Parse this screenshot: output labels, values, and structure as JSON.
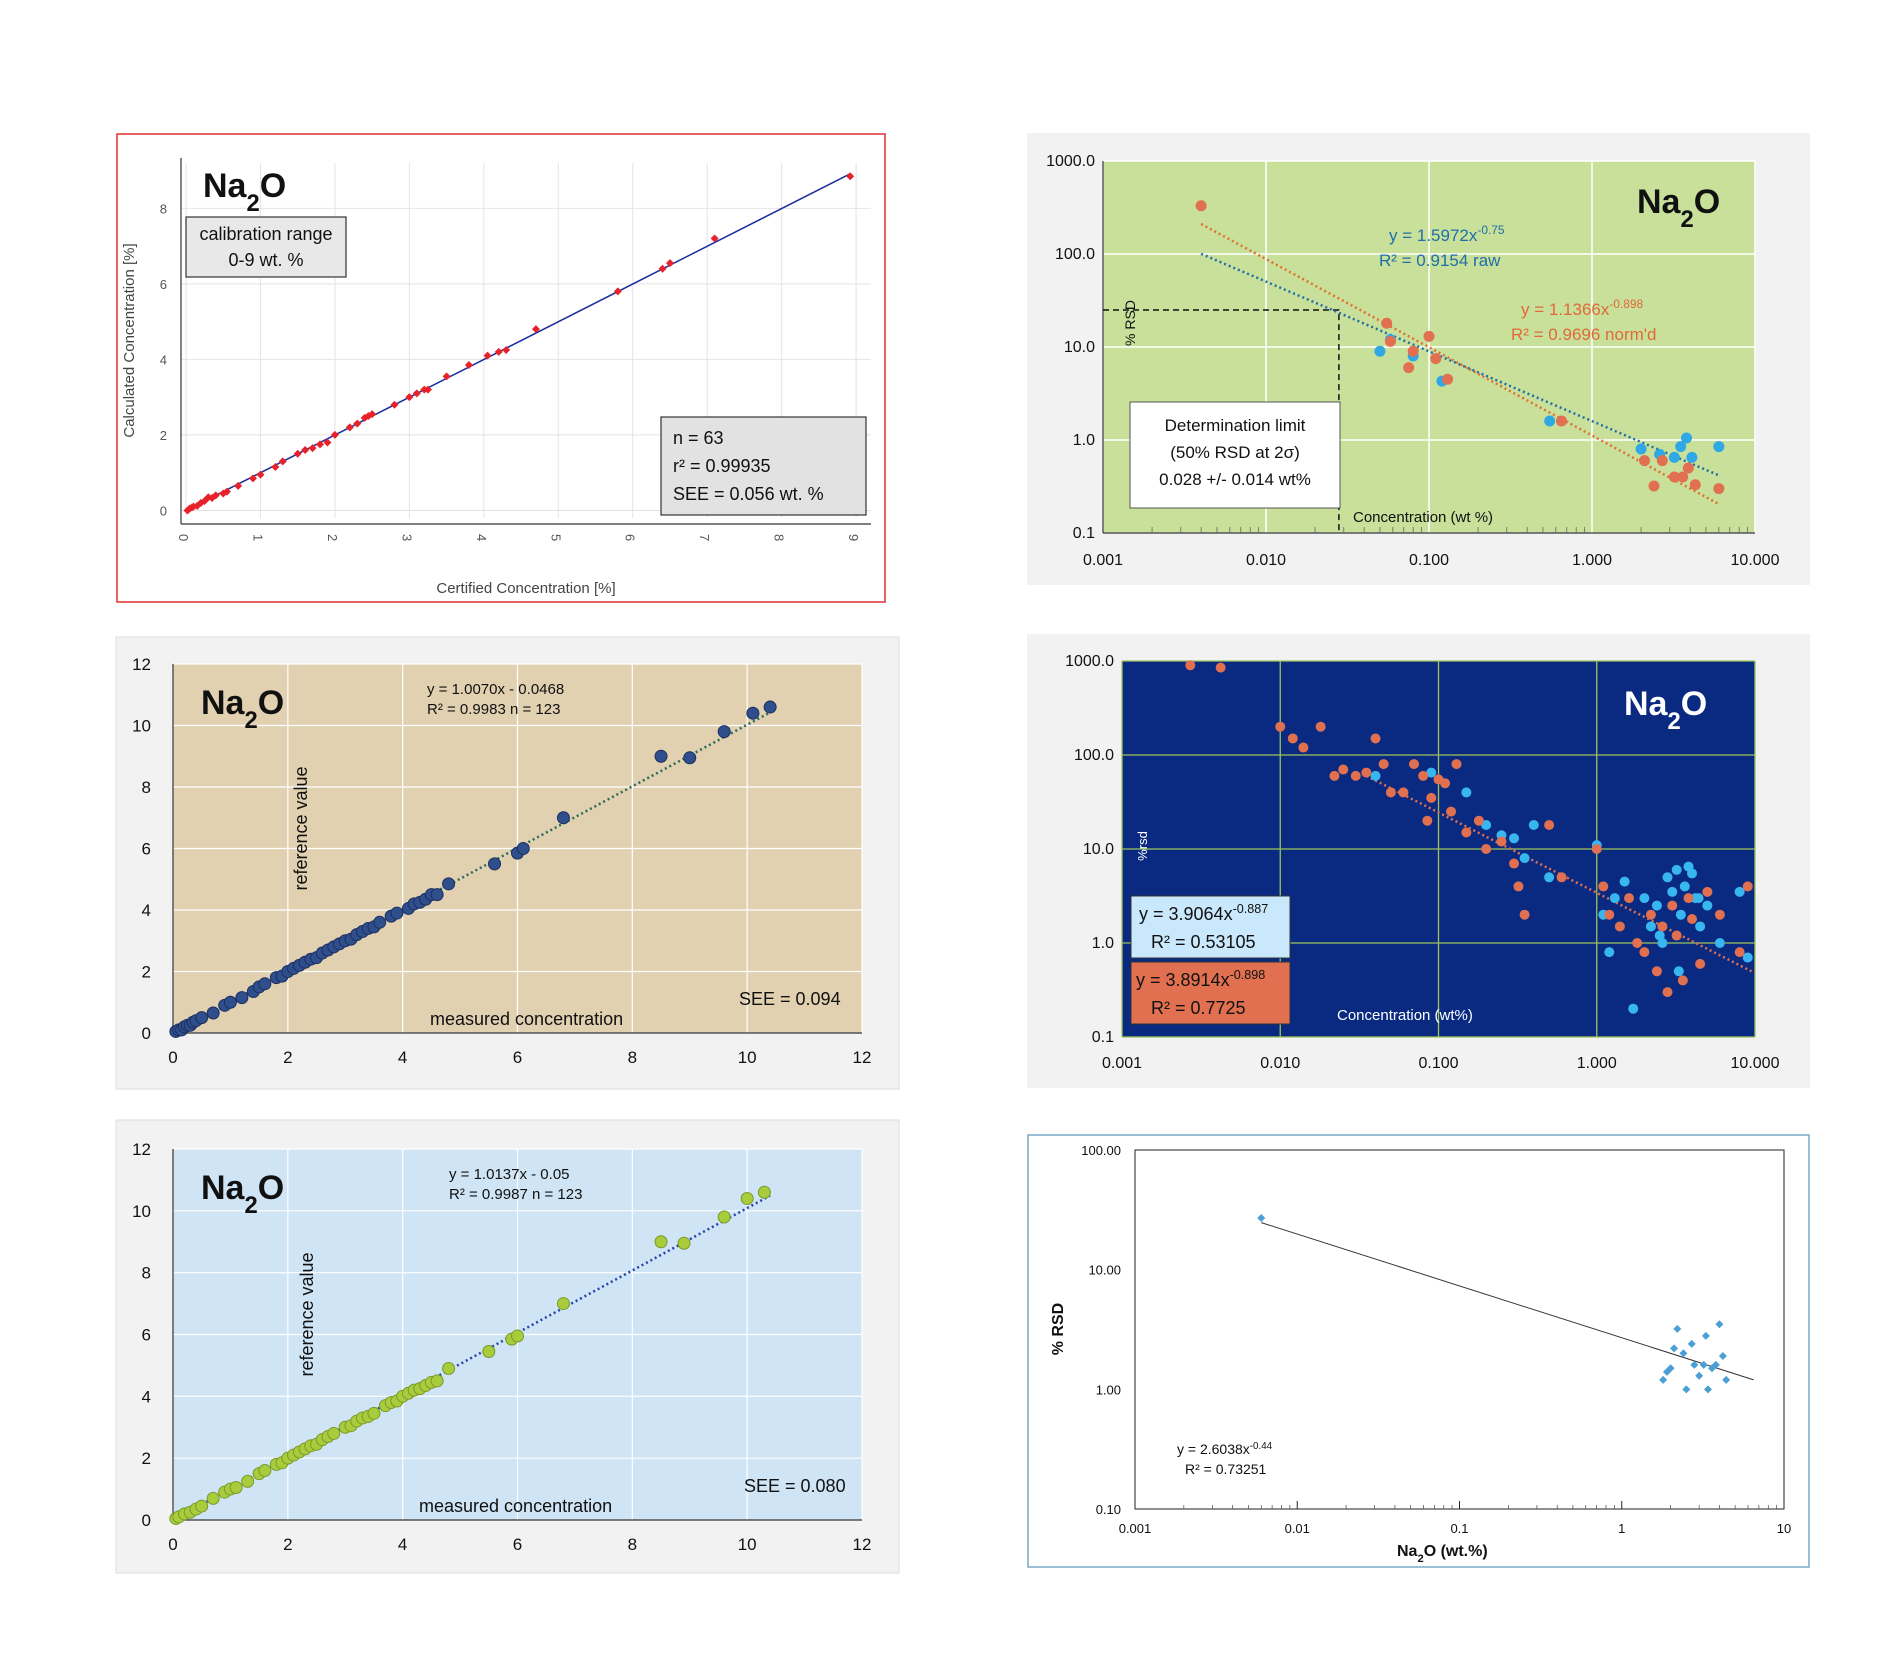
{
  "chart_data": [
    {
      "id": "p1",
      "type": "scatter",
      "title": "Na2O",
      "xlabel": "Certified Concentration [%]",
      "ylabel": "Calculated Concentration [%]",
      "xlim": [
        0,
        9.2
      ],
      "ylim": [
        -0.2,
        9.2
      ],
      "xticks": [
        0,
        1,
        2,
        3,
        4,
        5,
        6,
        7,
        8,
        9
      ],
      "yticks": [
        0,
        2,
        4,
        6,
        8
      ],
      "grid": true,
      "annotation_box": [
        "calibration range",
        "0-9 wt. %"
      ],
      "stats_box": [
        "n = 63",
        "r² = 0.99935",
        "SEE = 0.056 wt. %"
      ],
      "fit_line": {
        "slope": 0.9993,
        "intercept": 0.0
      },
      "series": [
        {
          "name": "",
          "color": "#e8222a",
          "x": [
            0.02,
            0.05,
            0.08,
            0.1,
            0.15,
            0.2,
            0.25,
            0.3,
            0.35,
            0.4,
            0.5,
            0.55,
            0.7,
            0.9,
            1.0,
            1.2,
            1.3,
            1.5,
            1.6,
            1.7,
            1.8,
            1.9,
            2.0,
            2.2,
            2.3,
            2.4,
            2.45,
            2.5,
            2.8,
            3.0,
            3.1,
            3.2,
            3.25,
            3.5,
            3.8,
            4.05,
            4.2,
            4.3,
            4.7,
            5.8,
            6.4,
            6.5,
            7.1,
            8.92
          ],
          "y": [
            0.0,
            0.05,
            0.08,
            0.1,
            0.12,
            0.2,
            0.25,
            0.35,
            0.33,
            0.4,
            0.45,
            0.5,
            0.65,
            0.85,
            0.95,
            1.15,
            1.3,
            1.5,
            1.6,
            1.65,
            1.75,
            1.8,
            2.0,
            2.2,
            2.3,
            2.45,
            2.5,
            2.55,
            2.8,
            3.0,
            3.1,
            3.2,
            3.2,
            3.55,
            3.85,
            4.1,
            4.2,
            4.25,
            4.8,
            5.8,
            6.4,
            6.55,
            7.2,
            8.85
          ]
        }
      ]
    },
    {
      "id": "p2",
      "type": "scatter",
      "title": "Na2O",
      "xscale": "log",
      "yscale": "log",
      "xlabel": "Concentration (wt %)",
      "ylabel": "% RSD",
      "xlim": [
        0.001,
        10
      ],
      "ylim": [
        0.1,
        1000
      ],
      "xtick_labels": [
        "0.001",
        "0.010",
        "0.100",
        "1.000",
        "10.000"
      ],
      "ytick_labels": [
        "0.1",
        "1.0",
        "10.0",
        "100.0",
        "1000.0"
      ],
      "grid": true,
      "annotation_box": [
        "Determination limit",
        "(50% RSD at 2σ)",
        "0.028 +/- 0.014 wt%"
      ],
      "determination_limit": {
        "x": 0.028,
        "y": 25
      },
      "series": [
        {
          "name": "raw",
          "color": "#31a8e6",
          "equation": "y = 1.5972x",
          "exponent": "-0.75",
          "r2": "R² = 0.9154  raw",
          "fit": {
            "a": 1.5972,
            "b": -0.75
          },
          "x": [
            0.05,
            0.058,
            0.08,
            0.12,
            0.55,
            2.0,
            2.6,
            3.2,
            3.5,
            3.8,
            4.1,
            6.0
          ],
          "y": [
            9.0,
            12.0,
            8.0,
            4.3,
            1.6,
            0.8,
            0.7,
            0.65,
            0.85,
            1.05,
            0.65,
            0.85
          ]
        },
        {
          "name": "norm'd",
          "color": "#e07050",
          "equation": "y = 1.1366x",
          "exponent": "-0.898",
          "r2": "R² = 0.9696  norm'd",
          "fit": {
            "a": 1.1366,
            "b": -0.898
          },
          "x": [
            0.004,
            0.055,
            0.058,
            0.075,
            0.08,
            0.1,
            0.11,
            0.13,
            0.65,
            2.1,
            2.4,
            2.7,
            3.2,
            3.6,
            3.9,
            4.3,
            6.0
          ],
          "y": [
            330,
            18.0,
            11.5,
            6.0,
            9.0,
            13.0,
            7.5,
            4.5,
            1.6,
            0.6,
            0.32,
            0.6,
            0.4,
            0.4,
            0.5,
            0.33,
            0.3
          ]
        }
      ]
    },
    {
      "id": "p3",
      "type": "scatter",
      "title": "Na2O",
      "xlabel": "measured concentration",
      "ylabel": "reference value",
      "xlim": [
        0,
        12
      ],
      "ylim": [
        0,
        12
      ],
      "xticks": [
        0,
        2,
        4,
        6,
        8,
        10,
        12
      ],
      "yticks": [
        0,
        2,
        4,
        6,
        8,
        10,
        12
      ],
      "grid": true,
      "equation": "y = 1.0070x - 0.0468",
      "stats": "R² = 0.9983  n = 123",
      "see": "SEE = 0.094",
      "fit_line": {
        "slope": 1.007,
        "intercept": -0.0468
      },
      "series": [
        {
          "name": "",
          "color": "#2f4f8c",
          "x": [
            0.05,
            0.1,
            0.15,
            0.2,
            0.25,
            0.3,
            0.35,
            0.4,
            0.5,
            0.7,
            0.9,
            1.0,
            1.2,
            1.4,
            1.5,
            1.6,
            1.8,
            1.9,
            2.0,
            2.1,
            2.2,
            2.3,
            2.4,
            2.5,
            2.6,
            2.7,
            2.8,
            2.9,
            3.0,
            3.1,
            3.2,
            3.3,
            3.4,
            3.5,
            3.6,
            3.8,
            3.9,
            4.1,
            4.2,
            4.3,
            4.4,
            4.5,
            4.6,
            4.8,
            5.6,
            6.0,
            6.1,
            6.8,
            8.5,
            9.0,
            9.6,
            10.1,
            10.4
          ],
          "y": [
            0.05,
            0.1,
            0.1,
            0.2,
            0.25,
            0.25,
            0.35,
            0.4,
            0.5,
            0.65,
            0.9,
            1.0,
            1.15,
            1.35,
            1.5,
            1.6,
            1.8,
            1.85,
            2.0,
            2.1,
            2.2,
            2.3,
            2.4,
            2.45,
            2.6,
            2.7,
            2.8,
            2.9,
            3.0,
            3.05,
            3.2,
            3.3,
            3.4,
            3.45,
            3.6,
            3.8,
            3.9,
            4.05,
            4.2,
            4.25,
            4.35,
            4.5,
            4.5,
            4.85,
            5.5,
            5.85,
            6.0,
            7.0,
            9.0,
            8.95,
            9.8,
            10.4,
            10.6
          ]
        }
      ]
    },
    {
      "id": "p4",
      "type": "scatter",
      "title": "Na2O",
      "xscale": "log",
      "yscale": "log",
      "xlabel": "Concentration (wt%)",
      "ylabel": "%rsd",
      "xlim": [
        0.001,
        10
      ],
      "ylim": [
        0.1,
        1000
      ],
      "xtick_labels": [
        "0.001",
        "0.010",
        "0.100",
        "1.000",
        "10.000"
      ],
      "ytick_labels": [
        "0.1",
        "1.0",
        "10.0",
        "100.0",
        "1000.0"
      ],
      "grid": true,
      "series": [
        {
          "name": "blue",
          "color": "#38b6f0",
          "equation": "y = 3.9064x",
          "exponent": "-0.887",
          "r2": "R² = 0.53105",
          "fit": {
            "a": 3.9064,
            "b": -0.887
          },
          "x": [
            0.04,
            0.09,
            0.15,
            0.2,
            0.25,
            0.3,
            0.35,
            0.4,
            0.5,
            1.0,
            1.1,
            1.3,
            1.5,
            1.7,
            2.0,
            2.2,
            2.4,
            2.6,
            2.8,
            3.0,
            3.2,
            3.4,
            3.6,
            3.8,
            4.0,
            4.2,
            4.5,
            5.0,
            6.0,
            8.0,
            9.0,
            1.2,
            2.5,
            3.3,
            4.4
          ],
          "y": [
            60.0,
            65.0,
            40.0,
            18.0,
            14.0,
            13.0,
            8.0,
            18.0,
            5.0,
            11.0,
            2.0,
            3.0,
            4.5,
            0.2,
            3.0,
            1.5,
            2.5,
            1.0,
            5.0,
            3.5,
            6.0,
            2.0,
            4.0,
            6.5,
            5.5,
            3.0,
            1.5,
            2.5,
            1.0,
            3.5,
            0.7,
            0.8,
            1.2,
            0.5,
            3.0
          ]
        },
        {
          "name": "orange",
          "color": "#e07050",
          "equation": "y = 3.8914x",
          "exponent": "-0.898",
          "r2": "R² = 0.7725",
          "fit": {
            "a": 3.8914,
            "b": -0.898
          },
          "x": [
            0.0027,
            0.0042,
            0.01,
            0.012,
            0.014,
            0.018,
            0.022,
            0.025,
            0.03,
            0.035,
            0.04,
            0.045,
            0.05,
            0.06,
            0.07,
            0.08,
            0.085,
            0.09,
            0.1,
            0.11,
            0.12,
            0.13,
            0.15,
            0.18,
            0.2,
            0.25,
            0.3,
            0.32,
            0.35,
            0.5,
            0.6,
            1.0,
            1.1,
            1.2,
            1.4,
            1.6,
            1.8,
            2.0,
            2.2,
            2.4,
            2.6,
            2.8,
            3.0,
            3.2,
            3.5,
            3.8,
            4.0,
            4.5,
            5.0,
            6.0,
            8.0,
            9.0
          ],
          "y": [
            900,
            850,
            200,
            150,
            120,
            200,
            60,
            70,
            60,
            65,
            150,
            80,
            40,
            40,
            80,
            60,
            20,
            35,
            55,
            50,
            25,
            80,
            15,
            20,
            10,
            12,
            7,
            4,
            2,
            18,
            5,
            10,
            4,
            2,
            1.5,
            3,
            1,
            0.8,
            2,
            0.5,
            1.5,
            0.3,
            2.5,
            1.2,
            0.4,
            3,
            1.8,
            0.6,
            3.5,
            2,
            0.8,
            4
          ]
        }
      ]
    },
    {
      "id": "p5",
      "type": "scatter",
      "title": "Na2O",
      "xlabel": "measured concentration",
      "ylabel": "reference value",
      "xlim": [
        0,
        12
      ],
      "ylim": [
        0,
        12
      ],
      "xticks": [
        0,
        2,
        4,
        6,
        8,
        10,
        12
      ],
      "yticks": [
        0,
        2,
        4,
        6,
        8,
        10,
        12
      ],
      "grid": true,
      "equation": "y = 1.0137x - 0.05",
      "stats": "R² = 0.9987   n = 123",
      "see": "SEE = 0.080",
      "fit_line": {
        "slope": 1.0137,
        "intercept": -0.05
      },
      "series": [
        {
          "name": "",
          "color": "#a8cc3c",
          "x": [
            0.05,
            0.1,
            0.2,
            0.3,
            0.4,
            0.5,
            0.7,
            0.9,
            1.0,
            1.1,
            1.3,
            1.5,
            1.6,
            1.8,
            1.9,
            2.0,
            2.1,
            2.2,
            2.3,
            2.4,
            2.5,
            2.6,
            2.7,
            2.8,
            3.0,
            3.1,
            3.2,
            3.3,
            3.4,
            3.5,
            3.7,
            3.8,
            3.9,
            4.0,
            4.1,
            4.2,
            4.3,
            4.4,
            4.5,
            4.6,
            4.8,
            5.5,
            5.9,
            6.0,
            6.8,
            8.5,
            8.9,
            9.6,
            10.0,
            10.3
          ],
          "y": [
            0.05,
            0.1,
            0.2,
            0.25,
            0.35,
            0.45,
            0.7,
            0.9,
            1.0,
            1.05,
            1.25,
            1.5,
            1.6,
            1.8,
            1.85,
            2.0,
            2.1,
            2.2,
            2.3,
            2.4,
            2.45,
            2.6,
            2.7,
            2.8,
            3.0,
            3.05,
            3.2,
            3.3,
            3.35,
            3.45,
            3.7,
            3.8,
            3.85,
            4.0,
            4.1,
            4.2,
            4.25,
            4.35,
            4.45,
            4.5,
            4.9,
            5.45,
            5.85,
            5.95,
            7.0,
            9.0,
            8.95,
            9.8,
            10.4,
            10.6
          ]
        }
      ]
    },
    {
      "id": "p6",
      "type": "scatter",
      "xscale": "log",
      "yscale": "log",
      "xlabel": "Na2O (wt.%)",
      "ylabel": "% RSD",
      "xlim": [
        0.001,
        10
      ],
      "ylim": [
        0.1,
        100
      ],
      "xtick_labels": [
        "0.001",
        "0.01",
        "0.1",
        "1",
        "10"
      ],
      "ytick_labels": [
        "0.10",
        "1.00",
        "10.00",
        "100.00"
      ],
      "grid": false,
      "equation": "y = 2.6038x",
      "exponent": "-0.44",
      "stats": "R² = 0.73251",
      "fit": {
        "a": 2.6038,
        "b": -0.44
      },
      "series": [
        {
          "name": "",
          "color": "#4a9fd6",
          "x": [
            0.006,
            1.8,
            2.0,
            2.2,
            2.4,
            2.5,
            2.7,
            2.8,
            3.0,
            3.2,
            3.4,
            3.6,
            4.0,
            4.2,
            4.4,
            1.9,
            2.1,
            3.3,
            3.8
          ],
          "y": [
            27,
            1.2,
            1.5,
            3.2,
            2.0,
            1.0,
            2.4,
            1.6,
            1.3,
            1.6,
            1.0,
            1.5,
            3.5,
            1.9,
            1.2,
            1.4,
            2.2,
            2.8,
            1.6
          ]
        }
      ]
    }
  ]
}
